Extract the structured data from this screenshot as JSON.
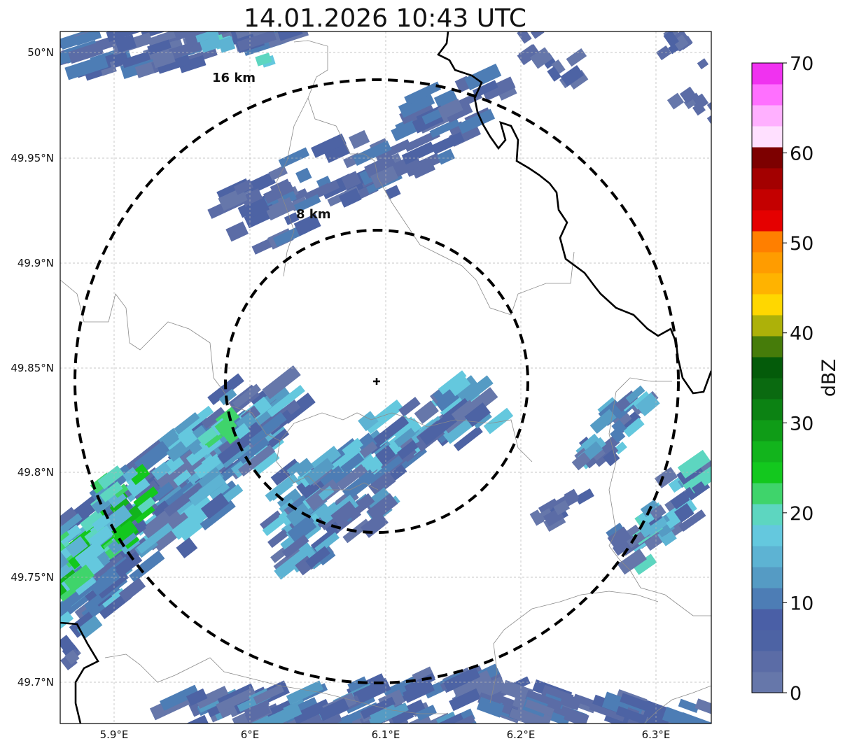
{
  "title": "14.01.2026 10:43 UTC",
  "map": {
    "x_ticks": [
      "5.9°E",
      "6°E",
      "6.1°E",
      "6.2°E",
      "6.3°E"
    ],
    "y_ticks": [
      "50°N",
      "49.95°N",
      "49.9°N",
      "49.85°N",
      "49.8°N",
      "49.75°N",
      "49.7°N"
    ],
    "range_rings": [
      {
        "label": "16 km",
        "radius_km": 16
      },
      {
        "label": "8 km",
        "radius_km": 8
      }
    ],
    "radar_marker": "radar-site-cross",
    "grid": true
  },
  "colorbar": {
    "label": "dBZ",
    "ticks": [
      "0",
      "10",
      "20",
      "30",
      "40",
      "50",
      "60",
      "70"
    ],
    "min": 0,
    "max": 70,
    "step": 2.5,
    "colors": [
      "#6677aa",
      "#5b6ca6",
      "#4d63a4",
      "#4a5fa6",
      "#4d7db5",
      "#559bc4",
      "#5db3d3",
      "#64c8de",
      "#5dd6c0",
      "#3fd46b",
      "#13c81e",
      "#12b41c",
      "#0f9c17",
      "#0c8213",
      "#0a6a10",
      "#045b0a",
      "#467c0a",
      "#adb109",
      "#ffd700",
      "#ffb300",
      "#ff9c00",
      "#ff7f00",
      "#e50000",
      "#c40000",
      "#a30000",
      "#7d0000",
      "#ffe0ff",
      "#ffb0ff",
      "#ff70ff",
      "#f032f0"
    ]
  },
  "colors": {
    "border_major": "#000000",
    "border_minor": "#8a8a8a",
    "grid": "#b5b5b5",
    "echo_low": "#5b6ca6",
    "echo_mid": "#5db3d3",
    "echo_high": "#13c81e"
  }
}
